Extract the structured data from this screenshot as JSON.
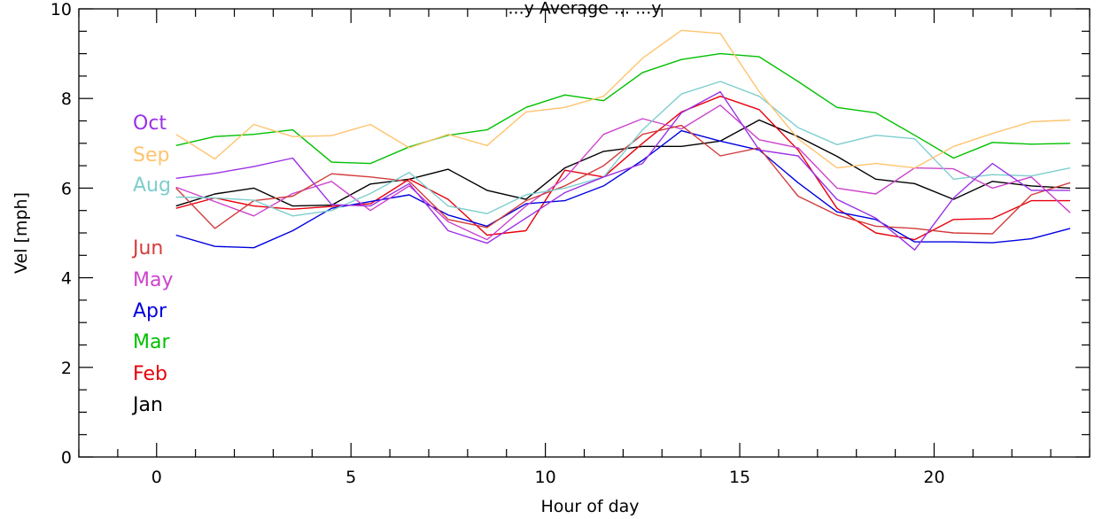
{
  "chart_data": {
    "type": "line",
    "title": "...y Average ... ...y",
    "xlabel": "Hour of day",
    "ylabel": "Vel [mph]",
    "xlim": [
      -2,
      24
    ],
    "ylim": [
      0,
      10
    ],
    "x_ticks": [
      "0",
      "5",
      "10",
      "15",
      "20"
    ],
    "y_ticks": [
      "0",
      "2",
      "4",
      "6",
      "8",
      "10"
    ],
    "grid": false,
    "legend_placement": "left",
    "x": [
      0.5,
      1.5,
      2.5,
      3.5,
      4.5,
      5.5,
      6.5,
      7.5,
      8.5,
      9.5,
      10.5,
      11.5,
      12.5,
      13.5,
      14.5,
      15.5,
      16.5,
      17.5,
      18.5,
      19.5,
      20.5,
      21.5,
      22.5,
      23.5
    ],
    "series": [
      {
        "name": "Jan",
        "color": "#000000",
        "values": [
          5.6,
          5.87,
          6.0,
          5.6,
          5.62,
          6.09,
          6.2,
          6.42,
          5.95,
          5.75,
          6.45,
          6.82,
          6.93,
          6.93,
          7.05,
          7.52,
          7.15,
          6.71,
          6.2,
          6.1,
          5.75,
          6.15,
          6.05,
          6.0
        ]
      },
      {
        "name": "Feb",
        "color": "#e8000b",
        "values": [
          5.55,
          5.78,
          5.6,
          5.53,
          5.59,
          5.65,
          6.2,
          5.75,
          4.95,
          5.05,
          6.4,
          6.25,
          7.0,
          7.7,
          8.05,
          7.75,
          6.85,
          5.55,
          5.0,
          4.85,
          5.3,
          5.32,
          5.72,
          5.72
        ]
      },
      {
        "name": "Mar",
        "color": "#00c000",
        "values": [
          6.95,
          7.15,
          7.2,
          7.3,
          6.58,
          6.55,
          6.92,
          7.18,
          7.3,
          7.8,
          8.08,
          7.95,
          8.58,
          8.87,
          9.0,
          8.93,
          8.38,
          7.8,
          7.68,
          7.18,
          6.67,
          7.02,
          6.98,
          7.0
        ]
      },
      {
        "name": "Apr",
        "color": "#0000e0",
        "values": [
          4.95,
          4.7,
          4.67,
          5.05,
          5.55,
          5.7,
          5.85,
          5.4,
          5.15,
          5.65,
          5.72,
          6.05,
          6.62,
          7.28,
          7.05,
          6.85,
          6.12,
          5.47,
          5.3,
          4.8,
          4.8,
          4.78,
          4.87,
          5.1
        ]
      },
      {
        "name": "May",
        "color": "#cc44cc",
        "values": [
          6.02,
          5.7,
          5.38,
          5.88,
          6.15,
          5.5,
          6.05,
          5.25,
          4.85,
          5.6,
          6.22,
          7.2,
          7.55,
          7.32,
          7.85,
          7.08,
          6.9,
          6.0,
          5.87,
          6.45,
          6.43,
          6.0,
          6.25,
          5.45
        ]
      },
      {
        "name": "Jun",
        "color": "#d23c3c",
        "values": [
          6.0,
          5.1,
          5.72,
          5.82,
          6.32,
          6.25,
          6.15,
          5.3,
          5.12,
          5.72,
          6.05,
          6.5,
          7.2,
          7.4,
          6.72,
          6.9,
          5.82,
          5.4,
          5.15,
          5.1,
          5.0,
          4.98,
          5.85,
          6.12
        ]
      },
      {
        "name": "Aug",
        "color": "#7ecece",
        "values": [
          5.8,
          5.78,
          5.73,
          5.38,
          5.5,
          5.88,
          6.35,
          5.6,
          5.43,
          5.85,
          6.0,
          6.25,
          7.3,
          8.1,
          8.38,
          8.05,
          7.35,
          6.97,
          7.18,
          7.1,
          6.2,
          6.3,
          6.27,
          6.45
        ]
      },
      {
        "name": "Sep",
        "color": "#ffc46e",
        "values": [
          7.2,
          6.65,
          7.42,
          7.15,
          7.17,
          7.42,
          6.9,
          7.2,
          6.95,
          7.7,
          7.8,
          8.05,
          8.9,
          9.52,
          9.45,
          8.15,
          7.1,
          6.45,
          6.55,
          6.45,
          6.93,
          7.22,
          7.48,
          7.52
        ]
      },
      {
        "name": "Oct",
        "color": "#9b30e6",
        "values": [
          6.22,
          6.33,
          6.48,
          6.67,
          5.63,
          5.6,
          6.1,
          5.05,
          4.77,
          5.33,
          5.9,
          6.25,
          6.55,
          7.68,
          8.15,
          6.85,
          6.72,
          5.75,
          5.33,
          4.62,
          5.78,
          6.55,
          5.95,
          5.95
        ]
      }
    ],
    "legend": [
      {
        "label": "Oct",
        "color": "#9b30e6"
      },
      {
        "label": "Sep",
        "color": "#ffc46e"
      },
      {
        "label": "Aug",
        "color": "#7ecece"
      },
      {
        "label": "Jun",
        "color": "#d23c3c"
      },
      {
        "label": "May",
        "color": "#cc44cc"
      },
      {
        "label": "Apr",
        "color": "#0000e0"
      },
      {
        "label": "Mar",
        "color": "#00c000"
      },
      {
        "label": "Feb",
        "color": "#e8000b"
      },
      {
        "label": "Jan",
        "color": "#000000"
      }
    ]
  }
}
